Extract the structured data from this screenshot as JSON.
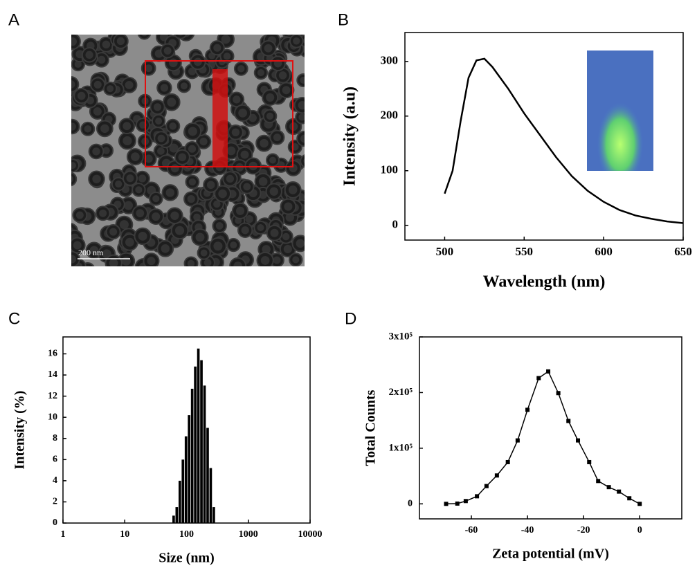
{
  "figure_a": {
    "label": "A",
    "scale_bar": "200 nm"
  },
  "chart_data": [
    {
      "panel": "B",
      "type": "line",
      "xlabel": "Wavelength (nm)",
      "ylabel": "Intensity (a.u)",
      "color": "#000000",
      "x": [
        500,
        505,
        510,
        515,
        520,
        525,
        530,
        540,
        550,
        560,
        570,
        580,
        590,
        600,
        610,
        620,
        630,
        640,
        650
      ],
      "values": [
        58,
        100,
        190,
        270,
        302,
        305,
        290,
        250,
        205,
        165,
        125,
        90,
        63,
        43,
        28,
        18,
        12,
        7,
        4
      ],
      "xlim": [
        475,
        650
      ],
      "ylim": [
        -27,
        353
      ],
      "xticks": [
        500,
        550,
        600,
        650
      ],
      "yticks": [
        0,
        100,
        200,
        300
      ]
    },
    {
      "panel": "C",
      "type": "histogram",
      "xscale": "log",
      "xlabel": "Size (nm)",
      "ylabel": "Intensity (%)",
      "color": "#000000",
      "bins": [
        59,
        66.2,
        74.3,
        83.3,
        93.5,
        104.9,
        117.7,
        132.1,
        148.2,
        166.3,
        186.6,
        209.4,
        234.9,
        263.6,
        295.8
      ],
      "values": [
        0.7,
        1.5,
        4.0,
        6.0,
        8.2,
        10.2,
        12.7,
        14.8,
        16.5,
        15.4,
        13.0,
        9.0,
        5.2,
        1.5
      ],
      "xlim": [
        1,
        10000
      ],
      "ylim": [
        0,
        17.6
      ],
      "xticks": [
        1,
        10,
        100,
        1000,
        10000
      ],
      "yticks": [
        0,
        2,
        4,
        6,
        8,
        10,
        12,
        14,
        16
      ]
    },
    {
      "panel": "D",
      "type": "line",
      "markers": "square",
      "xlabel": "Zeta potential (mV)",
      "ylabel": "Total Counts",
      "color": "#000000",
      "x": [
        -69,
        -65,
        -62,
        -58,
        -54.6,
        -50.9,
        -47,
        -43.5,
        -40,
        -36,
        -32.6,
        -29,
        -25.4,
        -22,
        -18,
        -14.8,
        -11,
        -7.4,
        -3.7,
        0
      ],
      "values": [
        0,
        500,
        5000,
        13600,
        32000,
        51000,
        75000,
        114000,
        169000,
        226000,
        238000,
        199000,
        149000,
        114000,
        75000,
        41000,
        30000,
        22000,
        10000,
        0
      ],
      "xlim": [
        -78.5,
        15
      ],
      "ylim": [
        -27000,
        300000
      ],
      "xticks": [
        -60,
        -40,
        -20,
        0
      ],
      "yticks": [
        0,
        {
          "value": 100000,
          "label": "1x10⁵"
        },
        {
          "value": 200000,
          "label": "2x10⁵"
        },
        {
          "value": 300000,
          "label": "3x10⁵"
        }
      ]
    }
  ]
}
